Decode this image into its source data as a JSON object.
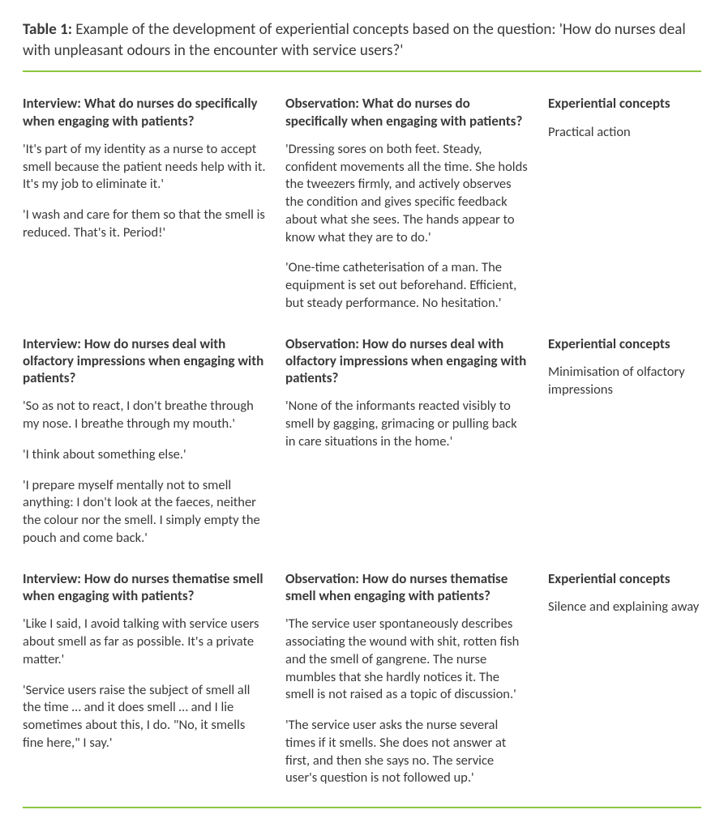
{
  "colors": {
    "rule": "#8cc63f",
    "text": "#3a3a3a",
    "background": "#ffffff"
  },
  "table_label": "Table 1:",
  "title": "Example of the development of experiential concepts based on the question: 'How do nurses deal with unpleasant odours in the encounter with service users?'",
  "sections": [
    {
      "interview_heading": "Interview: What do nurses do specifically when engaging with patients?",
      "interview_quotes": [
        "'It's part of my identity as a nurse to accept smell because the patient needs help with it. It's my job to eliminate it.'",
        "'I wash and care for them so that the smell is reduced. That's it. Period!'"
      ],
      "observation_heading": "Observation: What do nurses do specifically when engaging with patients?",
      "observation_quotes": [
        "'Dressing sores on both feet. Steady, confident movements all the time. She holds the tweezers firmly, and actively observes the condition and gives specific feedback about what she sees. The hands appear to know what they are to do.'",
        "'One-time catheterisation  of a man. The equipment is set out beforehand. Efficient, but steady performance. No hesitation.'"
      ],
      "concept_heading": "Experiential concepts",
      "concept": "Practical action"
    },
    {
      "interview_heading": "Interview: How do nurses deal with olfactory impressions when engaging with patients?",
      "interview_quotes": [
        "'So as not to react, I don't breathe through my nose. I breathe through my mouth.'",
        "'I think about something else.'",
        "'I prepare myself mentally not to smell anything: I don't look at the faeces, neither the colour nor the smell. I simply empty the pouch and come back.'"
      ],
      "observation_heading": "Observation: How do nurses deal with olfactory impressions when engaging with patients?",
      "observation_quotes": [
        "'None of the informants reacted visibly to smell by gagging, grimacing or pulling back in care situations in the home.'"
      ],
      "concept_heading": "Experiential concepts",
      "concept": "Minimisation of olfactory impressions"
    },
    {
      "interview_heading": "Interview: How do nurses thematise smell when engaging with patients?",
      "interview_quotes": [
        "'Like I said, I avoid talking with service users about smell as far as possible. It's a private matter.'",
        "'Service users raise the subject of smell all the time … and it does smell … and I lie sometimes about this, I do. \"No, it smells fine here,\" I say.'"
      ],
      "observation_heading": "Observation: How do nurses thematise smell when engaging with patients?",
      "observation_quotes": [
        "'The service user spontaneously describes associating the wound with shit, rotten fish and the smell of gangrene. The nurse mumbles that she hardly notices it. The smell is not raised as a topic of discussion.'",
        "'The service user asks the nurse several times if it smells. She does not answer at first, and then she says no. The service user's question is not followed up.'"
      ],
      "concept_heading": "Experiential concepts",
      "concept": "Silence and explaining away"
    }
  ]
}
